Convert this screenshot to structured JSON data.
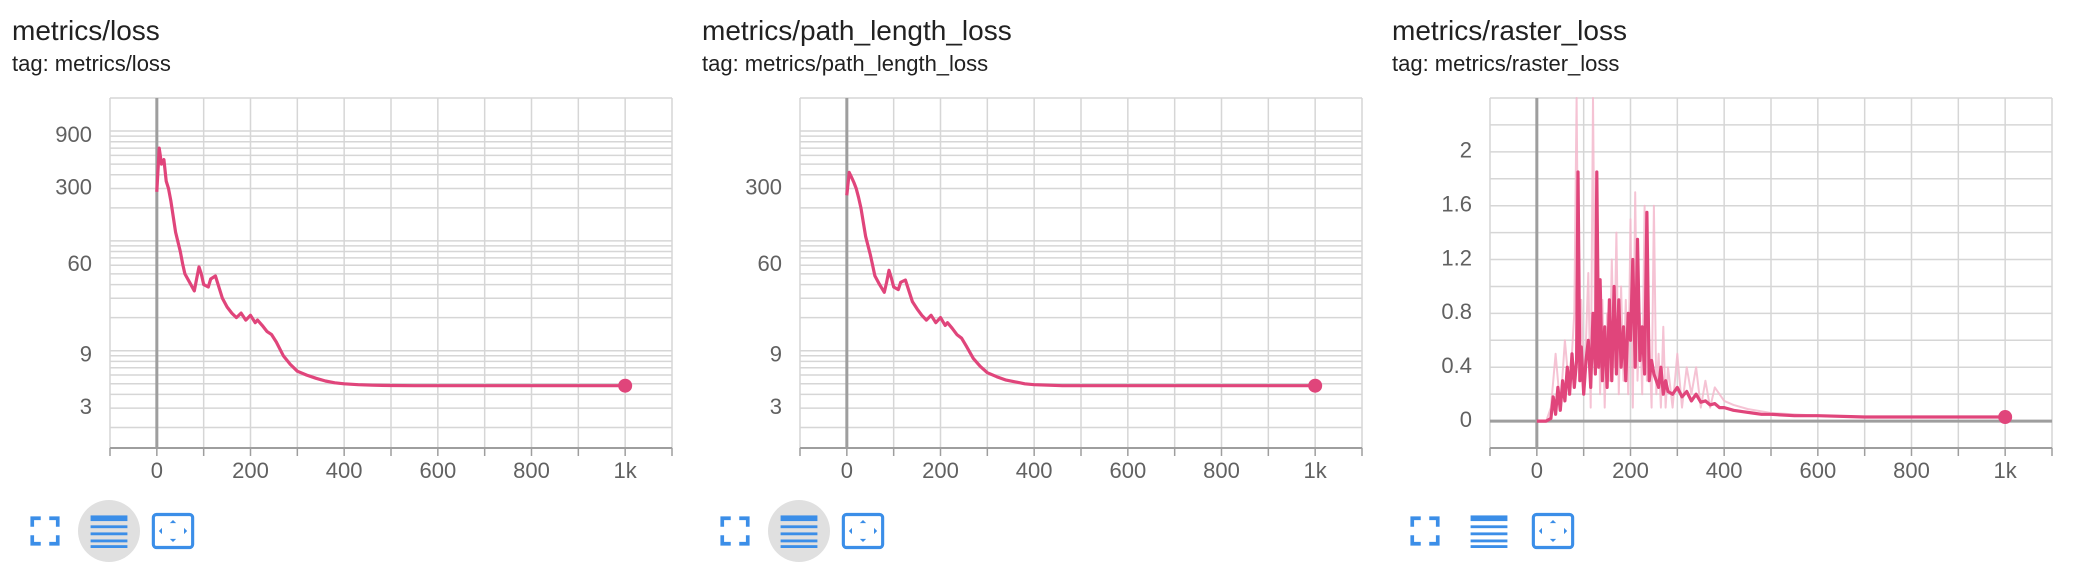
{
  "accent_color": "#e0457b",
  "smoothed_light_color": "#f3b8cd",
  "axis_color": "#9e9e9e",
  "grid_color": "#d6d6d6",
  "icon_color": "#3b8ee8",
  "toolbar": {
    "icons": [
      "fullscreen-icon",
      "data-table-icon",
      "fit-domain-icon"
    ]
  },
  "cards": [
    {
      "title": "metrics/loss",
      "tag": "tag: metrics/loss",
      "data_table_active": true
    },
    {
      "title": "metrics/path_length_loss",
      "tag": "tag: metrics/path_length_loss",
      "data_table_active": true
    },
    {
      "title": "metrics/raster_loss",
      "tag": "tag: metrics/raster_loss",
      "data_table_active": false
    }
  ],
  "chart_data": [
    {
      "type": "line",
      "title": "metrics/loss",
      "y_scale": "log",
      "grid": true,
      "xlim": [
        -100,
        1100
      ],
      "ylim": [
        1.3,
        2000
      ],
      "x_ticks": [
        0,
        200,
        400,
        600,
        800,
        1000
      ],
      "x_tick_labels": [
        "0",
        "200",
        "400",
        "600",
        "800",
        "1k"
      ],
      "y_ticks": [
        3,
        9,
        60,
        300,
        900
      ],
      "y_tick_labels": [
        "3",
        "9",
        "60",
        "300",
        "900"
      ],
      "series": [
        {
          "x": [
            0,
            5,
            10,
            15,
            20,
            25,
            30,
            40,
            50,
            55,
            60,
            70,
            80,
            85,
            90,
            95,
            100,
            110,
            115,
            125,
            140,
            150,
            160,
            170,
            180,
            190,
            200,
            210,
            215,
            225,
            235,
            245,
            255,
            270,
            285,
            300,
            320,
            340,
            360,
            380,
            400,
            430,
            460,
            500,
            550,
            600,
            700,
            800,
            900,
            1000
          ],
          "y": [
            280,
            700,
            500,
            550,
            350,
            300,
            230,
            120,
            80,
            62,
            50,
            42,
            35,
            45,
            58,
            50,
            40,
            38,
            45,
            48,
            30,
            25,
            22,
            20,
            22,
            19,
            21,
            18,
            19,
            17,
            15,
            14,
            12,
            9,
            7.5,
            6.5,
            6.0,
            5.6,
            5.3,
            5.1,
            5.0,
            4.9,
            4.85,
            4.82,
            4.8,
            4.8,
            4.8,
            4.8,
            4.8,
            4.8
          ],
          "last_point": [
            1000,
            4.8
          ]
        }
      ]
    },
    {
      "type": "line",
      "title": "metrics/path_length_loss",
      "y_scale": "log",
      "grid": true,
      "xlim": [
        -100,
        1100
      ],
      "ylim": [
        1.3,
        2000
      ],
      "x_ticks": [
        0,
        200,
        400,
        600,
        800,
        1000
      ],
      "x_tick_labels": [
        "0",
        "200",
        "400",
        "600",
        "800",
        "1k"
      ],
      "y_ticks": [
        3,
        9,
        60,
        300
      ],
      "y_tick_labels": [
        "3",
        "9",
        "60",
        "300"
      ],
      "series": [
        {
          "x": [
            0,
            5,
            10,
            15,
            20,
            25,
            30,
            40,
            50,
            55,
            60,
            70,
            80,
            85,
            90,
            95,
            100,
            110,
            115,
            125,
            140,
            150,
            160,
            170,
            180,
            190,
            200,
            210,
            215,
            225,
            235,
            245,
            255,
            270,
            285,
            300,
            320,
            340,
            360,
            380,
            400,
            430,
            460,
            500,
            550,
            600,
            700,
            800,
            900,
            1000
          ],
          "y": [
            260,
            420,
            380,
            340,
            300,
            250,
            200,
            110,
            75,
            60,
            48,
            40,
            34,
            42,
            54,
            46,
            38,
            36,
            42,
            44,
            28,
            24,
            21,
            19,
            21,
            18,
            20,
            17,
            18,
            16,
            14,
            13,
            11,
            8.5,
            7.2,
            6.3,
            5.8,
            5.4,
            5.2,
            5.0,
            4.9,
            4.85,
            4.8,
            4.8,
            4.8,
            4.8,
            4.8,
            4.8,
            4.8,
            4.8
          ],
          "last_point": [
            1000,
            4.8
          ]
        }
      ]
    },
    {
      "type": "line",
      "title": "metrics/raster_loss",
      "y_scale": "linear",
      "grid": true,
      "xlim": [
        -100,
        1100
      ],
      "ylim": [
        -0.2,
        2.4
      ],
      "x_ticks": [
        0,
        200,
        400,
        600,
        800,
        1000
      ],
      "x_tick_labels": [
        "0",
        "200",
        "400",
        "600",
        "800",
        "1k"
      ],
      "y_ticks": [
        0,
        0.4,
        0.8,
        1.2,
        1.6,
        2
      ],
      "y_tick_labels": [
        "0",
        "0.4",
        "0.8",
        "1.2",
        "1.6",
        "2"
      ],
      "series": [
        {
          "name": "raw",
          "style": "light",
          "x": [
            0,
            20,
            30,
            40,
            50,
            60,
            70,
            80,
            85,
            90,
            95,
            100,
            105,
            110,
            115,
            120,
            125,
            130,
            135,
            140,
            145,
            150,
            155,
            160,
            165,
            170,
            175,
            180,
            185,
            190,
            195,
            200,
            205,
            210,
            215,
            220,
            225,
            230,
            235,
            240,
            245,
            250,
            255,
            260,
            265,
            270,
            275,
            280,
            290,
            300,
            310,
            320,
            330,
            340,
            350,
            360,
            370,
            380,
            400,
            420,
            450,
            500,
            600,
            700,
            800,
            1000
          ],
          "y": [
            0,
            0,
            0.1,
            0.5,
            0.1,
            0.6,
            0.2,
            0.8,
            2.4,
            0.3,
            0.9,
            0.2,
            0.6,
            1.1,
            0.1,
            2.4,
            0.4,
            1.3,
            0.2,
            0.9,
            0.1,
            0.8,
            0.3,
            1.2,
            0.4,
            1.4,
            0.2,
            1.0,
            0.3,
            0.9,
            0.2,
            1.5,
            0.1,
            1.7,
            0.3,
            0.8,
            0.2,
            1.6,
            0.3,
            0.6,
            0.1,
            1.6,
            0.2,
            0.5,
            0.1,
            0.7,
            0.1,
            0.4,
            0.1,
            0.5,
            0.1,
            0.4,
            0.2,
            0.4,
            0.1,
            0.3,
            0.1,
            0.25,
            0.15,
            0.12,
            0.09,
            0.06,
            0.04,
            0.03,
            0.03,
            0.03
          ]
        },
        {
          "name": "smoothed",
          "style": "solid",
          "x": [
            0,
            20,
            30,
            35,
            40,
            45,
            50,
            55,
            60,
            65,
            70,
            75,
            80,
            85,
            88,
            92,
            95,
            100,
            105,
            110,
            115,
            120,
            125,
            128,
            132,
            135,
            140,
            145,
            150,
            155,
            160,
            165,
            170,
            175,
            180,
            185,
            190,
            195,
            200,
            205,
            210,
            215,
            220,
            225,
            230,
            235,
            240,
            245,
            250,
            255,
            260,
            265,
            270,
            275,
            280,
            290,
            300,
            310,
            320,
            330,
            340,
            350,
            360,
            370,
            380,
            390,
            400,
            420,
            440,
            460,
            480,
            500,
            550,
            600,
            700,
            800,
            900,
            1000
          ],
          "y": [
            0,
            0,
            0.02,
            0.18,
            0.05,
            0.25,
            0.08,
            0.3,
            0.15,
            0.4,
            0.2,
            0.5,
            0.25,
            0.45,
            1.85,
            0.3,
            0.55,
            0.2,
            0.45,
            0.6,
            0.25,
            0.8,
            0.35,
            1.85,
            0.4,
            1.05,
            0.3,
            0.7,
            0.25,
            0.9,
            0.3,
            1.0,
            0.35,
            0.9,
            0.4,
            0.7,
            0.3,
            0.8,
            0.6,
            1.2,
            0.4,
            1.35,
            0.45,
            0.7,
            0.35,
            1.55,
            0.3,
            0.45,
            0.35,
            0.3,
            0.25,
            0.4,
            0.2,
            0.3,
            0.22,
            0.2,
            0.25,
            0.18,
            0.22,
            0.15,
            0.2,
            0.14,
            0.15,
            0.12,
            0.13,
            0.1,
            0.1,
            0.08,
            0.07,
            0.06,
            0.05,
            0.05,
            0.04,
            0.04,
            0.03,
            0.03,
            0.03,
            0.03
          ],
          "last_point": [
            1000,
            0.03
          ]
        }
      ]
    }
  ]
}
